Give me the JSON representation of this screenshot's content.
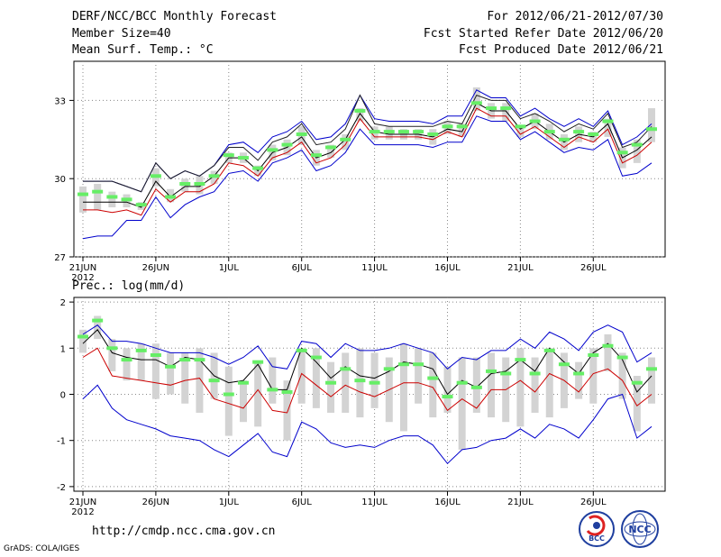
{
  "header": {
    "title": "DERF/NCC/BCC Monthly Forecast",
    "member": "Member Size=40",
    "variable": "Mean Surf. Temp.: °C",
    "period": "For 2012/06/21-2012/07/30",
    "started": "Fcst Started Refer Date 2012/06/20",
    "produced": "Fcst Produced Date 2012/06/21"
  },
  "footer": {
    "url": "http://cmdp.ncc.cma.gov.cn",
    "grads": "GrADS: COLA/IGES",
    "logo_bcc": "BCC",
    "logo_ncc": "NCC"
  },
  "colors": {
    "box": "#d3d3d3",
    "median": "#66ee66",
    "mean": "#000000",
    "upper": "#0000cc",
    "lower": "#cc0000",
    "grid": "#888888"
  },
  "chart_data": [
    {
      "type": "line",
      "title": "Mean Surf. Temp.: °C",
      "x_tick_labels": [
        "21JUN",
        "26JUN",
        "1JUL",
        "6JUL",
        "11JUL",
        "16JUL",
        "21JUL",
        "26JUL"
      ],
      "year_label": "2012",
      "ylim": [
        27,
        34.5
      ],
      "y_ticks": [
        27,
        30,
        33
      ],
      "box_top": [
        29.7,
        29.8,
        29.5,
        29.4,
        29.1,
        30.4,
        29.6,
        30.0,
        30.1,
        30.3,
        31.0,
        31.0,
        30.5,
        31.3,
        31.5,
        32.0,
        31.1,
        31.3,
        31.7,
        32.7,
        32.0,
        32.0,
        31.9,
        31.9,
        31.9,
        32.2,
        32.1,
        33.5,
        32.9,
        32.9,
        32.0,
        32.5,
        32.1,
        31.7,
        32.0,
        31.8,
        32.3,
        31.2,
        31.5,
        32.7
      ],
      "box_bottom": [
        28.7,
        28.8,
        28.9,
        28.9,
        28.8,
        29.7,
        29.1,
        29.5,
        29.4,
        29.8,
        30.6,
        30.6,
        30.1,
        30.7,
        30.9,
        31.3,
        30.5,
        30.8,
        31.1,
        32.2,
        31.5,
        31.5,
        31.5,
        31.5,
        31.3,
        31.7,
        31.6,
        32.6,
        32.3,
        32.2,
        31.6,
        31.9,
        31.5,
        31.1,
        31.4,
        31.4,
        31.6,
        30.4,
        30.6,
        31.4
      ],
      "median": [
        29.4,
        29.5,
        29.3,
        29.2,
        29.0,
        30.1,
        29.3,
        29.8,
        29.8,
        30.1,
        30.9,
        30.8,
        30.4,
        31.1,
        31.3,
        31.7,
        30.9,
        31.2,
        31.5,
        32.6,
        31.8,
        31.8,
        31.8,
        31.8,
        31.7,
        32.0,
        32.0,
        32.9,
        32.7,
        32.7,
        32.0,
        32.2,
        31.8,
        31.5,
        31.8,
        31.7,
        32.2,
        31.0,
        31.3,
        31.9
      ],
      "mean": [
        29.1,
        29.1,
        29.1,
        29.1,
        28.9,
        29.9,
        29.3,
        29.7,
        29.7,
        30.1,
        30.8,
        30.8,
        30.3,
        31.0,
        31.2,
        31.6,
        30.8,
        31.0,
        31.5,
        32.5,
        31.8,
        31.7,
        31.7,
        31.7,
        31.6,
        31.9,
        31.8,
        32.9,
        32.6,
        32.6,
        31.9,
        32.2,
        31.8,
        31.4,
        31.7,
        31.6,
        32.1,
        30.8,
        31.1,
        31.6
      ],
      "upper": [
        29.9,
        29.9,
        29.9,
        29.7,
        29.5,
        30.6,
        30.0,
        30.3,
        30.1,
        30.5,
        31.2,
        31.2,
        30.7,
        31.4,
        31.6,
        32.1,
        31.3,
        31.4,
        31.9,
        33.2,
        32.1,
        32.0,
        32.0,
        32.0,
        32.0,
        32.2,
        32.1,
        33.2,
        33.0,
        33.0,
        32.3,
        32.5,
        32.2,
        31.8,
        32.1,
        31.9,
        32.5,
        31.2,
        31.4,
        32.0
      ],
      "lower": [
        28.8,
        28.8,
        28.7,
        28.8,
        28.6,
        29.6,
        29.1,
        29.5,
        29.5,
        29.8,
        30.6,
        30.5,
        30.1,
        30.8,
        31.0,
        31.4,
        30.6,
        30.8,
        31.3,
        32.3,
        31.6,
        31.6,
        31.6,
        31.6,
        31.5,
        31.8,
        31.6,
        32.7,
        32.4,
        32.4,
        31.7,
        32.0,
        31.6,
        31.2,
        31.6,
        31.4,
        31.9,
        30.6,
        30.9,
        31.4
      ],
      "outer_upper": [
        29.9,
        29.9,
        29.9,
        29.7,
        29.5,
        30.6,
        30.0,
        30.3,
        30.1,
        30.5,
        31.3,
        31.4,
        31.0,
        31.6,
        31.8,
        32.2,
        31.5,
        31.6,
        32.1,
        33.2,
        32.3,
        32.2,
        32.2,
        32.2,
        32.1,
        32.4,
        32.4,
        33.4,
        33.1,
        33.1,
        32.4,
        32.7,
        32.3,
        32.0,
        32.3,
        32.0,
        32.6,
        31.3,
        31.6,
        32.1
      ],
      "outer_lower": [
        27.7,
        27.8,
        27.8,
        28.4,
        28.4,
        29.3,
        28.5,
        29.0,
        29.3,
        29.5,
        30.2,
        30.3,
        29.9,
        30.6,
        30.8,
        31.1,
        30.3,
        30.5,
        31.0,
        31.9,
        31.3,
        31.3,
        31.3,
        31.3,
        31.2,
        31.4,
        31.4,
        32.4,
        32.2,
        32.2,
        31.5,
        31.8,
        31.4,
        31.0,
        31.2,
        31.1,
        31.5,
        30.1,
        30.2,
        30.6
      ]
    },
    {
      "type": "line",
      "title": "Prec.: log(mm/d)",
      "x_tick_labels": [
        "21JUN",
        "26JUN",
        "1JUL",
        "6JUL",
        "11JUL",
        "16JUL",
        "21JUL",
        "26JUL"
      ],
      "year_label": "2012",
      "ylim": [
        -2.1,
        2.1
      ],
      "y_ticks": [
        -2,
        -1,
        0,
        1,
        2
      ],
      "box_top": [
        1.4,
        1.7,
        1.2,
        1.0,
        1.1,
        1.1,
        0.9,
        0.9,
        1.0,
        0.9,
        0.6,
        0.3,
        0.7,
        0.8,
        0.3,
        1.0,
        1.0,
        0.7,
        0.9,
        1.0,
        0.9,
        0.8,
        1.1,
        1.0,
        0.9,
        0.6,
        0.8,
        0.8,
        0.9,
        0.8,
        1.0,
        0.8,
        1.0,
        0.9,
        0.7,
        1.0,
        1.3,
        0.9,
        0.4,
        0.8
      ],
      "box_bottom": [
        0.9,
        1.2,
        0.5,
        0.3,
        0.3,
        -0.1,
        0.0,
        -0.2,
        -0.4,
        -0.1,
        -0.9,
        -0.6,
        -0.7,
        -0.2,
        -1.0,
        -0.2,
        -0.3,
        -0.4,
        -0.4,
        -0.5,
        -0.3,
        -0.6,
        -0.8,
        -0.2,
        -0.5,
        -0.4,
        -1.2,
        -0.4,
        -0.5,
        -0.6,
        -0.7,
        -0.4,
        -0.5,
        -0.3,
        -0.1,
        -0.2,
        0.5,
        -0.1,
        -0.8,
        -0.2
      ],
      "median": [
        1.25,
        1.6,
        1.0,
        0.75,
        0.95,
        0.85,
        0.6,
        0.75,
        0.75,
        0.3,
        0.0,
        0.25,
        0.7,
        0.1,
        0.05,
        0.95,
        0.8,
        0.25,
        0.55,
        0.3,
        0.25,
        0.55,
        0.65,
        0.65,
        0.35,
        -0.05,
        0.25,
        0.15,
        0.5,
        0.45,
        0.75,
        0.45,
        0.95,
        0.65,
        0.45,
        0.85,
        1.05,
        0.8,
        0.25,
        0.55
      ],
      "mean": [
        1.1,
        1.4,
        0.9,
        0.8,
        0.75,
        0.75,
        0.6,
        0.8,
        0.75,
        0.4,
        0.25,
        0.3,
        0.65,
        0.1,
        0.1,
        1.0,
        0.7,
        0.35,
        0.6,
        0.4,
        0.35,
        0.5,
        0.7,
        0.65,
        0.55,
        0.0,
        0.3,
        0.15,
        0.45,
        0.5,
        0.75,
        0.5,
        1.0,
        0.7,
        0.45,
        0.9,
        1.1,
        0.75,
        0.05,
        0.4
      ],
      "upper": [
        1.3,
        1.5,
        1.15,
        1.15,
        1.1,
        1.0,
        0.9,
        0.9,
        0.9,
        0.8,
        0.65,
        0.8,
        1.05,
        0.6,
        0.55,
        1.15,
        1.1,
        0.8,
        1.1,
        0.95,
        0.95,
        1.0,
        1.1,
        1.0,
        0.9,
        0.55,
        0.8,
        0.75,
        0.95,
        0.95,
        1.2,
        1.0,
        1.35,
        1.2,
        0.95,
        1.35,
        1.5,
        1.35,
        0.7,
        0.9
      ],
      "lower": [
        0.8,
        1.0,
        0.4,
        0.35,
        0.3,
        0.25,
        0.2,
        0.3,
        0.35,
        -0.1,
        -0.2,
        -0.3,
        0.1,
        -0.35,
        -0.4,
        0.45,
        0.2,
        -0.05,
        0.2,
        0.05,
        -0.05,
        0.1,
        0.25,
        0.25,
        0.15,
        -0.35,
        -0.1,
        -0.3,
        0.1,
        0.1,
        0.3,
        0.05,
        0.45,
        0.3,
        0.05,
        0.45,
        0.55,
        0.3,
        -0.25,
        0.0
      ],
      "outer_lower": [
        -0.1,
        0.2,
        -0.3,
        -0.55,
        -0.65,
        -0.75,
        -0.9,
        -0.95,
        -1.0,
        -1.2,
        -1.35,
        -1.1,
        -0.85,
        -1.25,
        -1.35,
        -0.6,
        -0.75,
        -1.05,
        -1.15,
        -1.1,
        -1.15,
        -1.0,
        -0.9,
        -0.9,
        -1.1,
        -1.5,
        -1.2,
        -1.15,
        -1.0,
        -0.95,
        -0.75,
        -0.95,
        -0.65,
        -0.75,
        -0.95,
        -0.55,
        -0.1,
        0.0,
        -0.95,
        -0.7
      ]
    }
  ]
}
